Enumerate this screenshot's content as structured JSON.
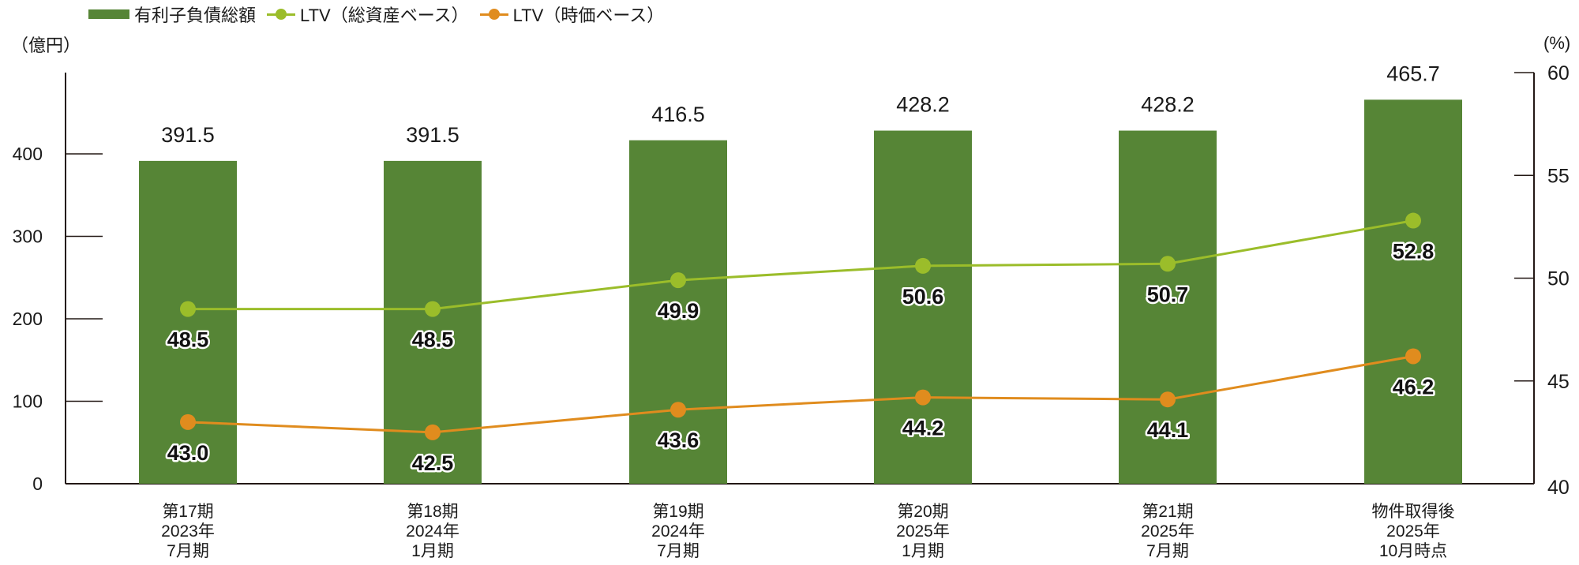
{
  "legend": {
    "items": [
      {
        "label": "有利子負債総額",
        "type": "bar",
        "color": "#568536"
      },
      {
        "label": "LTV（総資産ベース）",
        "type": "line",
        "color": "#9bbd2a"
      },
      {
        "label": "LTV（時価ベース）",
        "type": "line",
        "color": "#e08c1e"
      }
    ]
  },
  "axes": {
    "left_unit": "（億円）",
    "right_unit": "(%)",
    "left_ticks": [
      "0",
      "100",
      "200",
      "300",
      "400"
    ],
    "right_ticks": [
      "40",
      "45",
      "50",
      "55",
      "60"
    ]
  },
  "x_labels": [
    [
      "第17期",
      "2023年",
      "7月期"
    ],
    [
      "第18期",
      "2024年",
      "1月期"
    ],
    [
      "第19期",
      "2024年",
      "7月期"
    ],
    [
      "第20期",
      "2025年",
      "1月期"
    ],
    [
      "第21期",
      "2025年",
      "7月期"
    ],
    [
      "物件取得後",
      "2025年",
      "10月時点"
    ]
  ],
  "colors": {
    "bar": "#568536",
    "ltv_total_assets": "#9bbd2a",
    "ltv_market_value": "#e08c1e",
    "axis": "#231815"
  },
  "chart_data": {
    "type": "bar",
    "title": "",
    "categories": [
      "第17期 2023年7月期",
      "第18期 2024年1月期",
      "第19期 2024年7月期",
      "第20期 2025年1月期",
      "第21期 2025年7月期",
      "物件取得後 2025年10月時点"
    ],
    "series": [
      {
        "name": "有利子負債総額",
        "type": "bar",
        "axis": "left",
        "values": [
          391.5,
          391.5,
          416.5,
          428.2,
          428.2,
          465.7
        ],
        "labels": [
          "391.5",
          "391.5",
          "416.5",
          "428.2",
          "428.2",
          "465.7"
        ]
      },
      {
        "name": "LTV（総資産ベース）",
        "type": "line",
        "axis": "right",
        "values": [
          48.5,
          48.5,
          49.9,
          50.6,
          50.7,
          52.8
        ],
        "labels": [
          "48.5",
          "48.5",
          "49.9",
          "50.6",
          "50.7",
          "52.8"
        ]
      },
      {
        "name": "LTV（時価ベース）",
        "type": "line",
        "axis": "right",
        "values": [
          43.0,
          42.5,
          43.6,
          44.2,
          44.1,
          46.2
        ],
        "labels": [
          "43.0",
          "42.5",
          "43.6",
          "44.2",
          "44.1",
          "46.2"
        ]
      }
    ],
    "xlabel": "",
    "ylabel": "（億円）",
    "y2label": "(%)",
    "ylim": [
      0,
      500
    ],
    "y2lim": [
      40,
      60
    ],
    "left_ticks": [
      0,
      100,
      200,
      300,
      400
    ],
    "right_ticks": [
      40,
      45,
      50,
      55,
      60
    ],
    "grid": false,
    "legend_position": "top-left"
  }
}
